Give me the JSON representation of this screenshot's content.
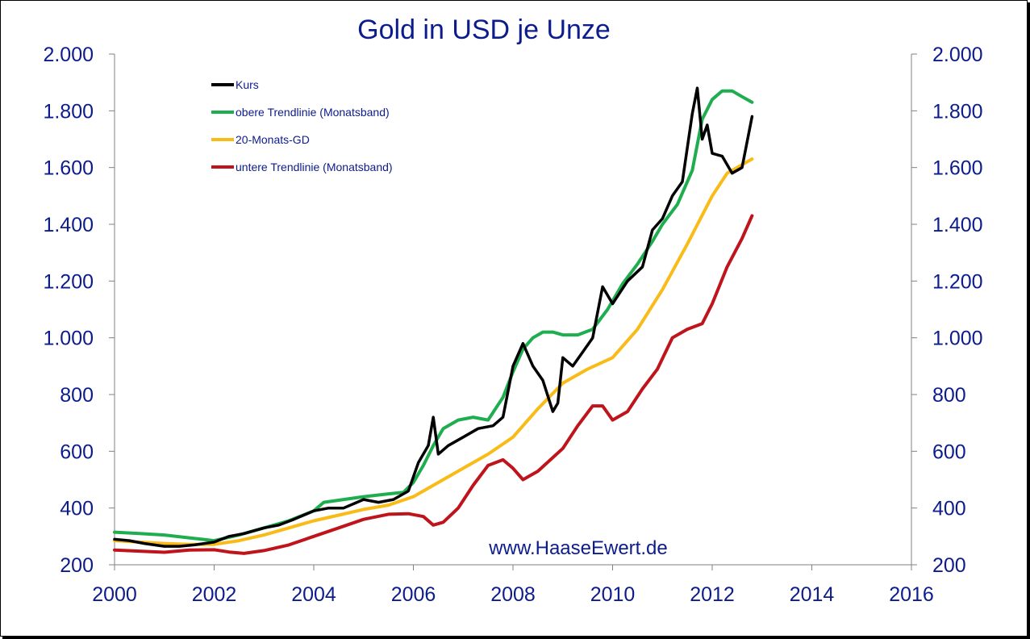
{
  "chart_data": {
    "type": "line",
    "title": "Gold in USD je Unze",
    "watermark": "www.HaaseEwert.de",
    "xlabel": "",
    "ylabel": "",
    "xlim": [
      2000,
      2016
    ],
    "ylim": [
      200,
      2000
    ],
    "x_ticks": [
      2000,
      2002,
      2004,
      2006,
      2008,
      2010,
      2012,
      2014,
      2016
    ],
    "x_tick_labels": [
      "2000",
      "2002",
      "2004",
      "2006",
      "2008",
      "2010",
      "2012",
      "2014",
      "2016"
    ],
    "y_ticks": [
      200,
      400,
      600,
      800,
      1000,
      1200,
      1400,
      1600,
      1800,
      2000
    ],
    "y_tick_labels": [
      "200",
      "400",
      "600",
      "800",
      "1.000",
      "1.200",
      "1.400",
      "1.600",
      "1.800",
      "2.000"
    ],
    "y_axes": "left and right (mirrored)",
    "grid": false,
    "legend_position": "top-left",
    "series": [
      {
        "name": "Kurs",
        "color": "#000000",
        "x": [
          2000.0,
          2000.3,
          2000.6,
          2001.0,
          2001.3,
          2001.6,
          2002.0,
          2002.3,
          2002.6,
          2003.0,
          2003.3,
          2003.6,
          2004.0,
          2004.3,
          2004.6,
          2005.0,
          2005.3,
          2005.6,
          2005.9,
          2006.1,
          2006.3,
          2006.4,
          2006.5,
          2006.7,
          2007.0,
          2007.3,
          2007.6,
          2007.8,
          2008.0,
          2008.2,
          2008.4,
          2008.6,
          2008.8,
          2008.9,
          2009.0,
          2009.2,
          2009.4,
          2009.6,
          2009.8,
          2010.0,
          2010.3,
          2010.6,
          2010.8,
          2011.0,
          2011.2,
          2011.4,
          2011.6,
          2011.7,
          2011.8,
          2011.9,
          2012.0,
          2012.2,
          2012.4,
          2012.6,
          2012.8
        ],
        "values": [
          290,
          285,
          275,
          265,
          265,
          270,
          280,
          300,
          310,
          330,
          340,
          360,
          390,
          400,
          400,
          430,
          420,
          430,
          460,
          560,
          620,
          720,
          590,
          620,
          650,
          680,
          690,
          720,
          900,
          980,
          900,
          850,
          740,
          770,
          930,
          900,
          950,
          1000,
          1180,
          1120,
          1200,
          1250,
          1380,
          1420,
          1500,
          1550,
          1790,
          1880,
          1700,
          1750,
          1650,
          1640,
          1580,
          1600,
          1780
        ]
      },
      {
        "name": "obere Trendlinie (Monatsband)",
        "color": "#1fae4f",
        "x": [
          2000.0,
          2000.5,
          2001.0,
          2001.5,
          2002.0,
          2002.5,
          2003.0,
          2003.5,
          2004.0,
          2004.2,
          2004.6,
          2005.0,
          2005.5,
          2005.8,
          2006.0,
          2006.2,
          2006.4,
          2006.6,
          2006.9,
          2007.2,
          2007.5,
          2007.8,
          2008.0,
          2008.2,
          2008.4,
          2008.6,
          2008.8,
          2009.0,
          2009.3,
          2009.6,
          2009.9,
          2010.2,
          2010.5,
          2010.8,
          2011.0,
          2011.3,
          2011.6,
          2011.8,
          2012.0,
          2012.2,
          2012.4,
          2012.6,
          2012.8
        ],
        "values": [
          315,
          310,
          305,
          295,
          285,
          305,
          330,
          355,
          390,
          420,
          430,
          440,
          450,
          455,
          490,
          550,
          620,
          680,
          710,
          720,
          710,
          790,
          880,
          960,
          1000,
          1020,
          1020,
          1010,
          1010,
          1030,
          1100,
          1190,
          1260,
          1340,
          1400,
          1470,
          1590,
          1770,
          1840,
          1870,
          1870,
          1850,
          1830
        ]
      },
      {
        "name": "20-Monats-GD",
        "color": "#f8bb17",
        "x": [
          2000.0,
          2000.5,
          2001.0,
          2001.5,
          2002.0,
          2002.5,
          2003.0,
          2003.5,
          2004.0,
          2004.5,
          2005.0,
          2005.5,
          2006.0,
          2006.5,
          2007.0,
          2007.5,
          2008.0,
          2008.5,
          2009.0,
          2009.5,
          2010.0,
          2010.5,
          2011.0,
          2011.5,
          2012.0,
          2012.3,
          2012.6,
          2012.8
        ],
        "values": [
          285,
          280,
          275,
          272,
          272,
          285,
          305,
          330,
          355,
          375,
          395,
          410,
          440,
          490,
          540,
          590,
          650,
          750,
          840,
          890,
          930,
          1030,
          1170,
          1330,
          1500,
          1580,
          1610,
          1630
        ]
      },
      {
        "name": "untere Trendlinie (Monatsband)",
        "color": "#c0141c",
        "x": [
          2000.0,
          2000.5,
          2001.0,
          2001.5,
          2002.0,
          2002.3,
          2002.6,
          2003.0,
          2003.5,
          2004.0,
          2004.5,
          2005.0,
          2005.5,
          2005.9,
          2006.2,
          2006.4,
          2006.6,
          2006.9,
          2007.2,
          2007.5,
          2007.8,
          2008.0,
          2008.2,
          2008.5,
          2009.0,
          2009.3,
          2009.6,
          2009.8,
          2010.0,
          2010.3,
          2010.6,
          2010.9,
          2011.2,
          2011.5,
          2011.8,
          2012.0,
          2012.3,
          2012.6,
          2012.8
        ],
        "values": [
          252,
          248,
          244,
          252,
          253,
          245,
          240,
          250,
          270,
          300,
          330,
          360,
          378,
          380,
          370,
          340,
          350,
          400,
          480,
          550,
          570,
          540,
          500,
          530,
          610,
          690,
          760,
          760,
          710,
          740,
          820,
          890,
          1000,
          1030,
          1050,
          1120,
          1250,
          1350,
          1430
        ]
      }
    ]
  }
}
